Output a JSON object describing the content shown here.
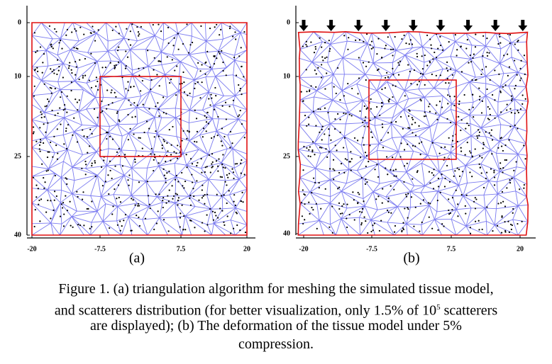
{
  "figure": {
    "panels": [
      {
        "label": "(a)",
        "yticks": [
          "0",
          "10",
          "25",
          "40"
        ],
        "xticks": [
          "-20",
          "-7.5",
          "7.5",
          "20"
        ]
      },
      {
        "label": "(b)",
        "yticks": [
          "0",
          "10",
          "25",
          "40"
        ],
        "xticks": [
          "-20",
          "-7.5",
          "7.5",
          "20"
        ]
      }
    ],
    "caption": {
      "line1": "Figure 1.    (a) triangulation algorithm for meshing the simulated tissue model,",
      "line2": {
        "before": "and scatterers distribution (for better visualization, only 1.5% of 10",
        "sup": "5",
        "after": " scatterers"
      },
      "line3": "are displayed); (b) The deformation of the tissue model under 5%",
      "line4": "compression."
    }
  }
}
